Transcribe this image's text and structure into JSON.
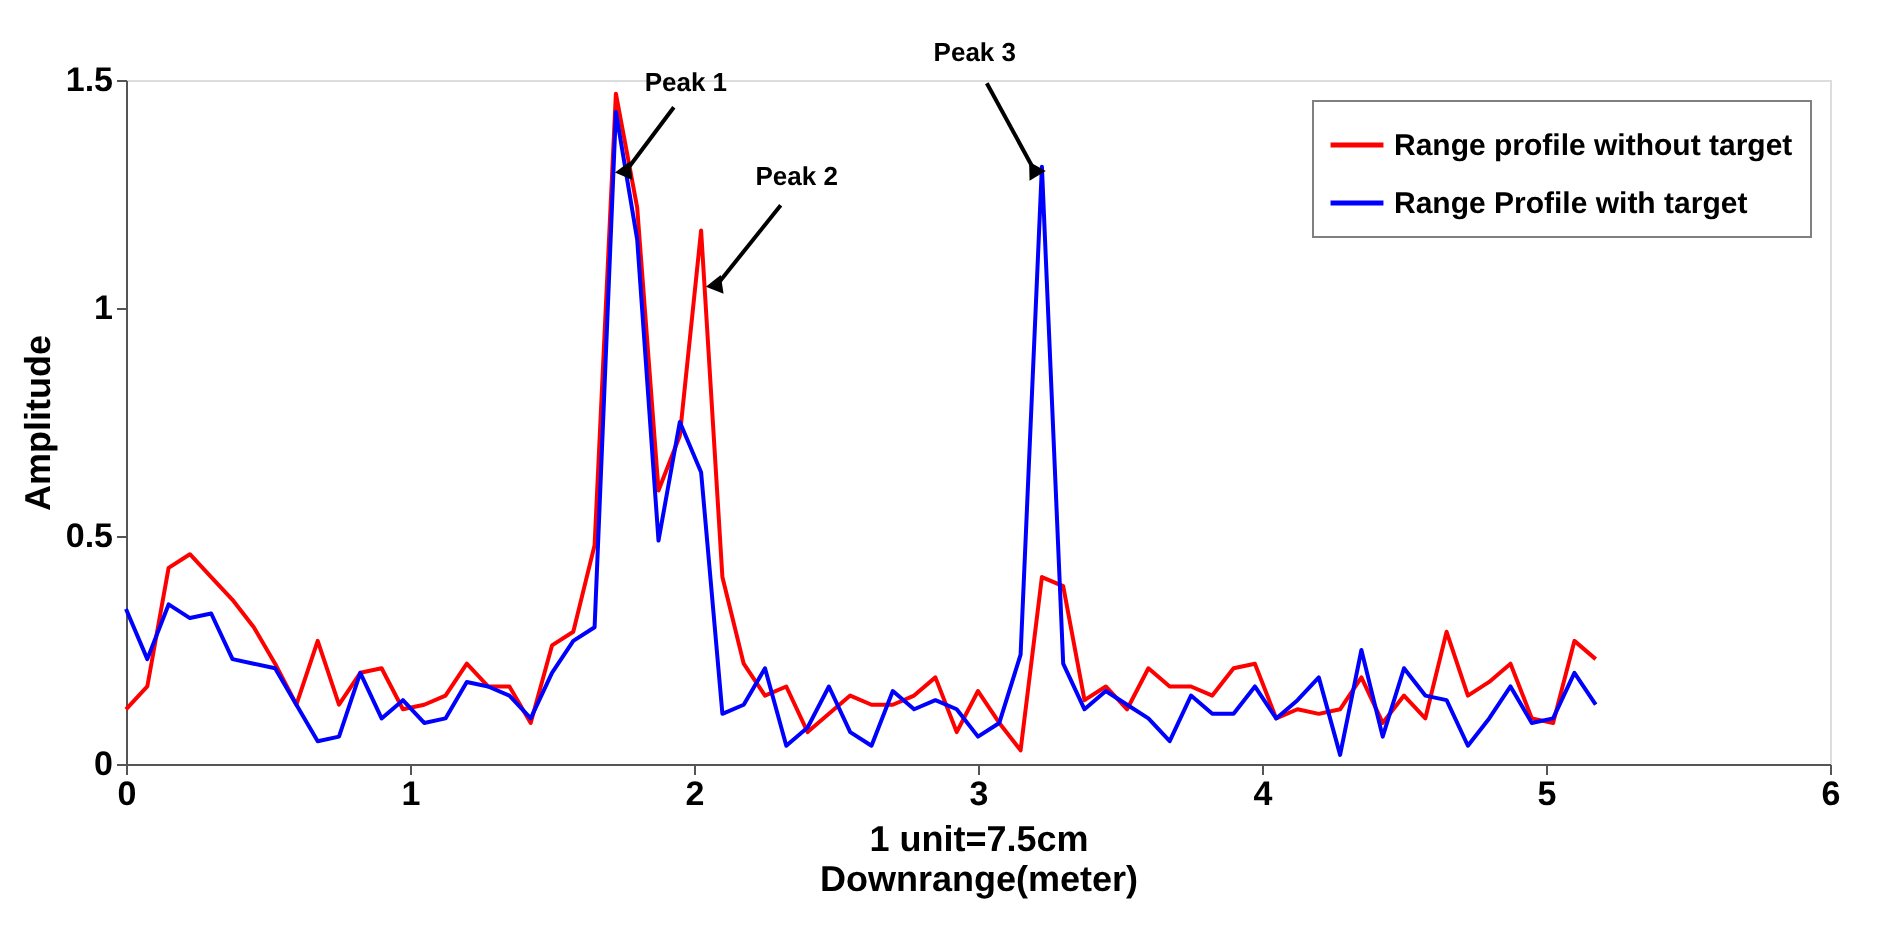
{
  "chart_data": {
    "type": "line",
    "xlabel": "1 unit=7.5cm\nDownrange(meter)",
    "ylabel": "Amplitude",
    "x": [
      0,
      0.075,
      0.15,
      0.225,
      0.3,
      0.375,
      0.45,
      0.525,
      0.6,
      0.675,
      0.75,
      0.825,
      0.9,
      0.975,
      1.05,
      1.125,
      1.2,
      1.275,
      1.35,
      1.425,
      1.5,
      1.575,
      1.65,
      1.725,
      1.8,
      1.875,
      1.95,
      2.025,
      2.1,
      2.175,
      2.25,
      2.325,
      2.4,
      2.475,
      2.55,
      2.625,
      2.7,
      2.775,
      2.85,
      2.925,
      3.0,
      3.075,
      3.15,
      3.225,
      3.3,
      3.375,
      3.45,
      3.525,
      3.6,
      3.675,
      3.75,
      3.825,
      3.9,
      3.975,
      4.05,
      4.125,
      4.2,
      4.275,
      4.35,
      4.425,
      4.5,
      4.575,
      4.65,
      4.725,
      4.8,
      4.875,
      4.95,
      5.025,
      5.1,
      5.175
    ],
    "series": [
      {
        "name": "Range profile without target",
        "color": "#ff0000",
        "values": [
          0.12,
          0.17,
          0.43,
          0.46,
          0.41,
          0.36,
          0.3,
          0.22,
          0.13,
          0.27,
          0.13,
          0.2,
          0.21,
          0.12,
          0.13,
          0.15,
          0.22,
          0.17,
          0.17,
          0.09,
          0.26,
          0.29,
          0.48,
          1.47,
          1.22,
          0.6,
          0.72,
          1.17,
          0.41,
          0.22,
          0.15,
          0.17,
          0.07,
          0.11,
          0.15,
          0.13,
          0.13,
          0.15,
          0.19,
          0.07,
          0.16,
          0.09,
          0.03,
          0.41,
          0.39,
          0.14,
          0.17,
          0.12,
          0.21,
          0.17,
          0.17,
          0.15,
          0.21,
          0.22,
          0.1,
          0.12,
          0.11,
          0.12,
          0.19,
          0.09,
          0.15,
          0.1,
          0.29,
          0.15,
          0.18,
          0.22,
          0.1,
          0.09,
          0.27,
          0.23
        ]
      },
      {
        "name": "Range Profile with target",
        "color": "#0000ff",
        "values": [
          0.34,
          0.23,
          0.35,
          0.32,
          0.33,
          0.23,
          0.22,
          0.21,
          0.13,
          0.05,
          0.06,
          0.2,
          0.1,
          0.14,
          0.09,
          0.1,
          0.18,
          0.17,
          0.15,
          0.1,
          0.2,
          0.27,
          0.3,
          1.43,
          1.15,
          0.49,
          0.75,
          0.64,
          0.11,
          0.13,
          0.21,
          0.04,
          0.08,
          0.17,
          0.07,
          0.04,
          0.16,
          0.12,
          0.14,
          0.12,
          0.06,
          0.09,
          0.24,
          1.31,
          0.22,
          0.12,
          0.16,
          0.13,
          0.1,
          0.05,
          0.15,
          0.11,
          0.11,
          0.17,
          0.1,
          0.14,
          0.19,
          0.02,
          0.25,
          0.06,
          0.21,
          0.15,
          0.14,
          0.04,
          0.1,
          0.17,
          0.09,
          0.1,
          0.2,
          0.13
        ]
      }
    ],
    "xlim": [
      0,
      6
    ],
    "xticks": [
      0,
      1,
      2,
      3,
      4,
      5,
      6
    ],
    "ylim": [
      0,
      1.5
    ],
    "yticks": [
      0,
      0.5,
      1,
      1.5
    ],
    "grid": false,
    "legend": "top right",
    "marker": "none",
    "line_style": "solid",
    "annotations": [
      {
        "text": "Peak 1",
        "x": 1.76,
        "y": 1.3
      },
      {
        "text": "Peak 2",
        "x": 2.08,
        "y": 1.05
      },
      {
        "text": "Peak 3",
        "x": 3.2,
        "y": 1.3
      }
    ]
  }
}
